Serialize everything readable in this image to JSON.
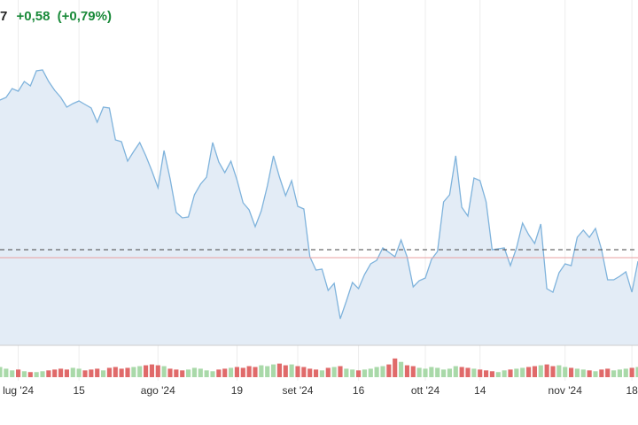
{
  "header": {
    "price": "7",
    "change": "+0,58",
    "change_pct": "(+0,79%)"
  },
  "chart_data": [
    {
      "type": "area",
      "x": [
        0,
        1,
        2,
        3,
        4,
        5,
        6,
        7,
        8,
        9,
        10,
        11,
        12,
        13,
        14,
        15,
        16,
        17,
        18,
        19,
        20,
        21,
        22,
        23,
        24,
        25,
        26,
        27,
        28,
        29,
        30,
        31,
        32,
        33,
        34,
        35,
        36,
        37,
        38,
        39,
        40,
        41,
        42,
        43,
        44,
        45,
        46,
        47,
        48,
        49,
        50,
        51,
        52,
        53,
        54,
        55,
        56,
        57,
        58,
        59,
        60,
        61,
        62,
        63,
        64,
        65,
        66,
        67,
        68,
        69,
        70,
        71,
        72,
        73,
        74,
        75,
        76,
        77,
        78,
        79,
        80,
        81,
        82,
        83,
        84,
        85,
        86,
        87,
        88,
        89,
        90,
        91,
        92,
        93,
        94,
        95,
        96,
        97,
        98,
        99,
        100,
        101,
        102,
        103,
        104,
        105
      ],
      "series": [
        {
          "color": "#7fb3dc",
          "values": [
            277,
            280,
            290,
            287,
            298,
            293,
            310,
            311,
            298,
            288,
            280,
            269,
            273,
            276,
            272,
            268,
            252,
            269,
            268,
            232,
            230,
            208,
            219,
            229,
            214,
            197,
            178,
            220,
            188,
            150,
            144,
            145,
            170,
            182,
            190,
            229,
            207,
            195,
            208,
            187,
            161,
            153,
            134,
            152,
            180,
            214,
            190,
            169,
            186,
            157,
            154,
            100,
            85,
            86,
            62,
            70,
            30,
            50,
            71,
            64,
            80,
            92,
            96,
            110,
            105,
            100,
            119,
            100,
            66,
            73,
            76,
            97,
            106,
            162,
            170,
            214,
            156,
            146,
            189,
            186,
            162,
            108,
            109,
            110,
            90,
            110,
            138,
            125,
            115,
            137,
            64,
            60,
            82,
            92,
            90,
            122,
            130,
            122,
            132,
            108,
            74,
            74,
            78,
            83,
            60,
            95
          ]
        }
      ],
      "fill": "#e3ecf6",
      "xlim": [
        0,
        105
      ],
      "ylim": [
        0,
        350
      ],
      "xticks": [
        {
          "value": 3,
          "label": "lug '24"
        },
        {
          "value": 13,
          "label": "15"
        },
        {
          "value": 26,
          "label": "ago '24"
        },
        {
          "value": 39,
          "label": "19"
        },
        {
          "value": 49,
          "label": "set '24"
        },
        {
          "value": 59,
          "label": "16"
        },
        {
          "value": 70,
          "label": "ott '24"
        },
        {
          "value": 79,
          "label": "14"
        },
        {
          "value": 93,
          "label": "nov '24"
        },
        {
          "value": 104,
          "label": "18"
        }
      ],
      "reference_lines": [
        {
          "value": 108,
          "dashed": true,
          "color": "#444444"
        },
        {
          "value": 99,
          "dashed": false,
          "color": "#e9a0a0"
        }
      ],
      "grid": true
    },
    {
      "type": "bar",
      "values": [
        12,
        10,
        8,
        9,
        7,
        6,
        6,
        7,
        8,
        9,
        10,
        9,
        11,
        10,
        8,
        9,
        10,
        8,
        11,
        12,
        10,
        11,
        12,
        13,
        14,
        15,
        14,
        13,
        10,
        9,
        8,
        9,
        11,
        10,
        8,
        7,
        9,
        10,
        11,
        12,
        11,
        13,
        12,
        14,
        13,
        15,
        16,
        14,
        15,
        13,
        12,
        10,
        9,
        8,
        11,
        12,
        13,
        10,
        9,
        8,
        9,
        10,
        12,
        13,
        15,
        22,
        18,
        14,
        13,
        11,
        10,
        12,
        11,
        9,
        10,
        13,
        12,
        11,
        10,
        9,
        8,
        7,
        6,
        8,
        9,
        10,
        11,
        12,
        13,
        14,
        15,
        13,
        14,
        12,
        11,
        10,
        9,
        8,
        7,
        9,
        10,
        8,
        9,
        10,
        11,
        12
      ],
      "ylim": [
        0,
        25
      ],
      "up_color": "#a9d9a9",
      "down_color": "#e06a6a"
    }
  ]
}
